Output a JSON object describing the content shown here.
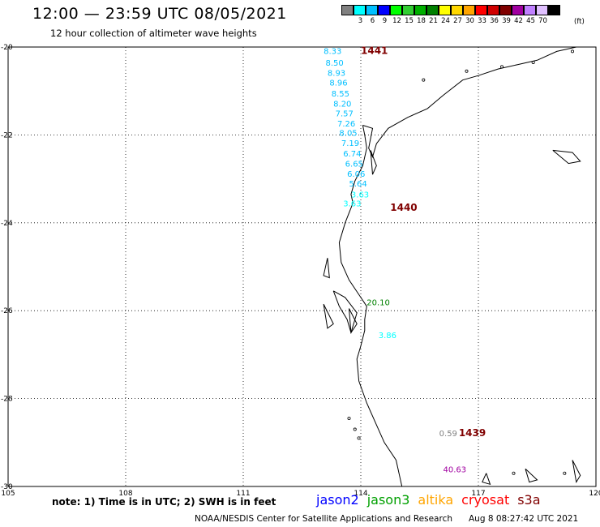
{
  "title": "12:00 — 23:59 UTC 08/05/2021",
  "subtitle": "12 hour collection of altimeter wave heights",
  "legend": {
    "unit": "(ft)",
    "bins": [
      {
        "label": "",
        "color": "#808080"
      },
      {
        "label": "3",
        "color": "#00ffff"
      },
      {
        "label": "6",
        "color": "#00bfff"
      },
      {
        "label": "9",
        "color": "#0000ff"
      },
      {
        "label": "12",
        "color": "#00ff00"
      },
      {
        "label": "15",
        "color": "#32cd32"
      },
      {
        "label": "18",
        "color": "#00b000"
      },
      {
        "label": "21",
        "color": "#008000"
      },
      {
        "label": "24",
        "color": "#ffff00"
      },
      {
        "label": "27",
        "color": "#ffd700"
      },
      {
        "label": "30",
        "color": "#ffa500"
      },
      {
        "label": "33",
        "color": "#ff0000"
      },
      {
        "label": "36",
        "color": "#d00000"
      },
      {
        "label": "39",
        "color": "#800000"
      },
      {
        "label": "42",
        "color": "#a000a0"
      },
      {
        "label": "45",
        "color": "#c080ff"
      },
      {
        "label": "70",
        "color": "#e0c0ff"
      },
      {
        "label": "",
        "color": "#000000"
      }
    ]
  },
  "map": {
    "lon_range": [
      105,
      120
    ],
    "lat_range": [
      -30,
      -20
    ],
    "lon_ticks": [
      "105",
      "108",
      "111",
      "114",
      "117",
      "120"
    ],
    "lat_ticks": [
      "-20",
      "-22",
      "-24",
      "-26",
      "-28",
      "-30"
    ],
    "grid": "dotted"
  },
  "passes": [
    {
      "label": "1441",
      "lon": 114.0,
      "lat": -20.08,
      "color": "#800000"
    },
    {
      "label": "1440",
      "lon": 114.75,
      "lat": -23.65,
      "color": "#800000"
    },
    {
      "label": "1439",
      "lon": 116.5,
      "lat": -28.78,
      "color": "#800000"
    }
  ],
  "observations": [
    {
      "value": "8.33",
      "lon": 113.05,
      "lat": -20.08,
      "color": "#00bfff"
    },
    {
      "value": "8.50",
      "lon": 113.1,
      "lat": -20.35,
      "color": "#00bfff"
    },
    {
      "value": "8.93",
      "lon": 113.15,
      "lat": -20.58,
      "color": "#00bfff"
    },
    {
      "value": "8.96",
      "lon": 113.2,
      "lat": -20.8,
      "color": "#00bfff"
    },
    {
      "value": "8.55",
      "lon": 113.25,
      "lat": -21.05,
      "color": "#00bfff"
    },
    {
      "value": "8.20",
      "lon": 113.3,
      "lat": -21.28,
      "color": "#00bfff"
    },
    {
      "value": "7.57",
      "lon": 113.35,
      "lat": -21.5,
      "color": "#00bfff"
    },
    {
      "value": "7.26",
      "lon": 113.4,
      "lat": -21.73,
      "color": "#00bfff"
    },
    {
      "value": "8.05",
      "lon": 113.45,
      "lat": -21.95,
      "color": "#00bfff"
    },
    {
      "value": "7.19",
      "lon": 113.5,
      "lat": -22.18,
      "color": "#00bfff"
    },
    {
      "value": "6.74",
      "lon": 113.55,
      "lat": -22.42,
      "color": "#00bfff"
    },
    {
      "value": "6.65",
      "lon": 113.6,
      "lat": -22.65,
      "color": "#00bfff"
    },
    {
      "value": "6.06",
      "lon": 113.65,
      "lat": -22.88,
      "color": "#00bfff"
    },
    {
      "value": "5.64",
      "lon": 113.7,
      "lat": -23.1,
      "color": "#00bfff"
    },
    {
      "value": "3.63",
      "lon": 113.75,
      "lat": -23.35,
      "color": "#00ffff"
    },
    {
      "value": "3.63",
      "lon": 113.55,
      "lat": -23.55,
      "color": "#00ffff"
    },
    {
      "value": "20.10",
      "lon": 114.15,
      "lat": -25.8,
      "color": "#008000"
    },
    {
      "value": "3.86",
      "lon": 114.45,
      "lat": -26.55,
      "color": "#00ffff"
    },
    {
      "value": "0.59",
      "lon": 116.0,
      "lat": -28.78,
      "color": "#808080"
    },
    {
      "value": "40.63",
      "lon": 116.1,
      "lat": -29.6,
      "color": "#a000a0"
    }
  ],
  "footer": {
    "note": "note:  1) Time is in UTC;  2) SWH is in feet",
    "satellites": [
      {
        "name": "jason2",
        "color": "#0000ff"
      },
      {
        "name": "jason3",
        "color": "#00a000"
      },
      {
        "name": "altika",
        "color": "#ffa500"
      },
      {
        "name": "cryosat",
        "color": "#ff0000"
      },
      {
        "name": "s3a",
        "color": "#800000"
      }
    ],
    "credit": "NOAA/NESDIS Center for Satellite Applications and Research",
    "timestamp": "Aug  8 08:27:42 UTC 2021"
  }
}
